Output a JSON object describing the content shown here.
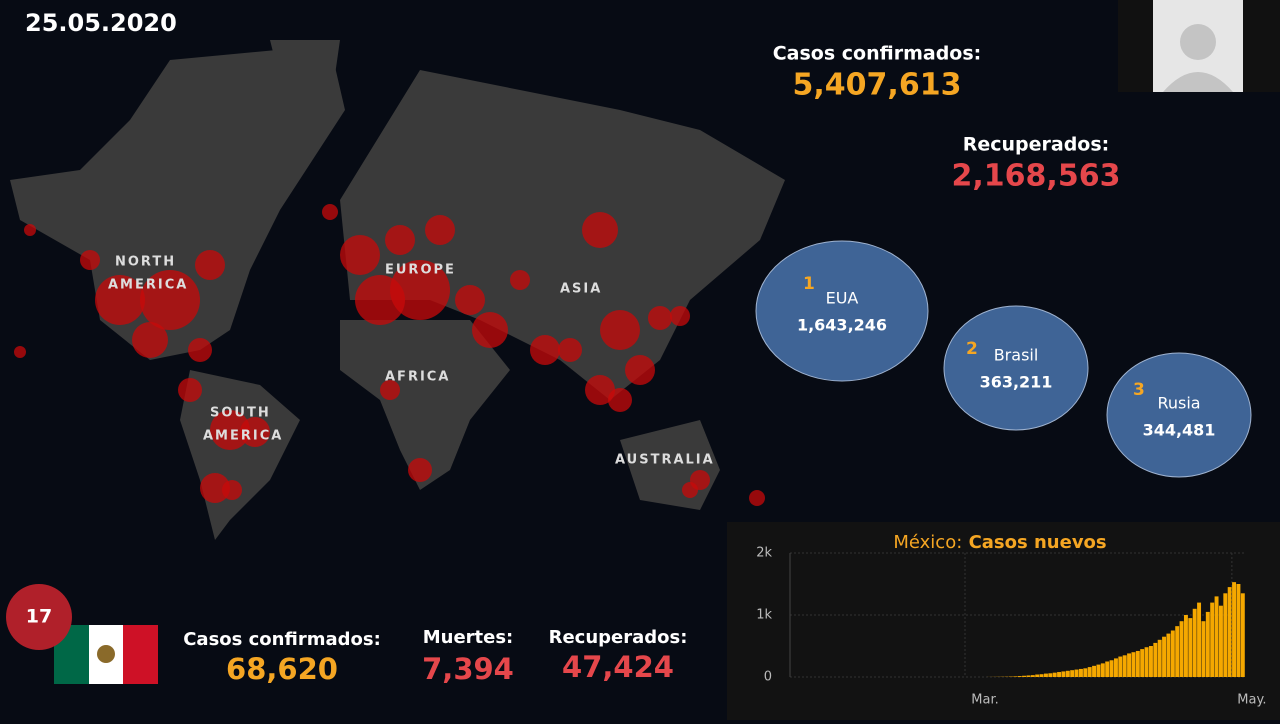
{
  "date": "25.05.2020",
  "global": {
    "confirmed_label": "Casos confirmados:",
    "confirmed": "5,407,613",
    "recovered_label": "Recuperados:",
    "recovered": "2,168,563"
  },
  "top_countries": [
    {
      "rank": "1",
      "name": "EUA",
      "cases": "1,643,246"
    },
    {
      "rank": "2",
      "name": "Brasil",
      "cases": "363,211"
    },
    {
      "rank": "3",
      "name": "Rusia",
      "cases": "344,481"
    }
  ],
  "map_labels": [
    "NORTH",
    "AMERICA",
    "EUROPE",
    "ASIA",
    "AFRICA",
    "SOUTH",
    "AMERICA",
    "AUSTRALIA"
  ],
  "mexico": {
    "rank": "17",
    "confirmed_label": "Casos confirmados:",
    "confirmed": "68,620",
    "deaths_label": "Muertes:",
    "deaths": "7,394",
    "recovered_label": "Recuperados:",
    "recovered": "47,424"
  },
  "chart_data": {
    "type": "bar",
    "title_prefix": "México:",
    "title": "Casos nuevos",
    "categories": [
      null,
      null,
      null,
      null,
      null,
      null,
      null,
      null,
      null,
      null,
      null,
      null,
      null,
      null,
      null,
      null,
      null,
      null,
      null,
      null,
      null,
      null,
      null,
      null,
      null,
      null,
      null,
      null,
      null,
      null,
      null,
      null,
      null,
      null,
      null,
      null,
      null,
      null,
      null,
      null,
      "Mar.",
      null,
      null,
      null,
      null,
      null,
      null,
      null,
      null,
      null,
      null,
      null,
      null,
      null,
      null,
      null,
      null,
      null,
      null,
      null,
      null,
      null,
      null,
      null,
      null,
      null,
      null,
      null,
      null,
      null,
      null,
      null,
      null,
      null,
      null,
      null,
      null,
      null,
      null,
      null,
      null,
      null,
      null,
      null,
      null,
      null,
      null,
      null,
      null,
      null,
      null,
      null,
      null,
      null,
      null,
      null,
      null,
      null,
      null,
      null,
      null,
      "May.",
      null,
      null
    ],
    "values": [
      0,
      0,
      0,
      0,
      0,
      0,
      0,
      0,
      0,
      0,
      0,
      0,
      0,
      0,
      0,
      0,
      0,
      0,
      0,
      0,
      0,
      0,
      0,
      0,
      0,
      0,
      0,
      0,
      0,
      0,
      0,
      0,
      0,
      0,
      0,
      0,
      0,
      0,
      0,
      0,
      0,
      0,
      0,
      0,
      0,
      1,
      2,
      3,
      4,
      5,
      7,
      10,
      15,
      20,
      25,
      30,
      40,
      45,
      55,
      60,
      70,
      80,
      90,
      100,
      110,
      120,
      130,
      140,
      160,
      180,
      200,
      220,
      250,
      270,
      300,
      330,
      350,
      380,
      400,
      420,
      450,
      480,
      500,
      550,
      600,
      650,
      700,
      750,
      820,
      900,
      1000,
      950,
      1100,
      1200,
      900,
      1050,
      1200,
      1300,
      1150,
      1350,
      1450,
      1530,
      1500,
      1350
    ],
    "color": "#f5a800",
    "ylim": [
      0,
      2000
    ],
    "yticks": [
      0,
      {
        "value": 1000,
        "label": "1k"
      },
      {
        "value": 2000,
        "label": "2k"
      }
    ],
    "grid": true
  }
}
